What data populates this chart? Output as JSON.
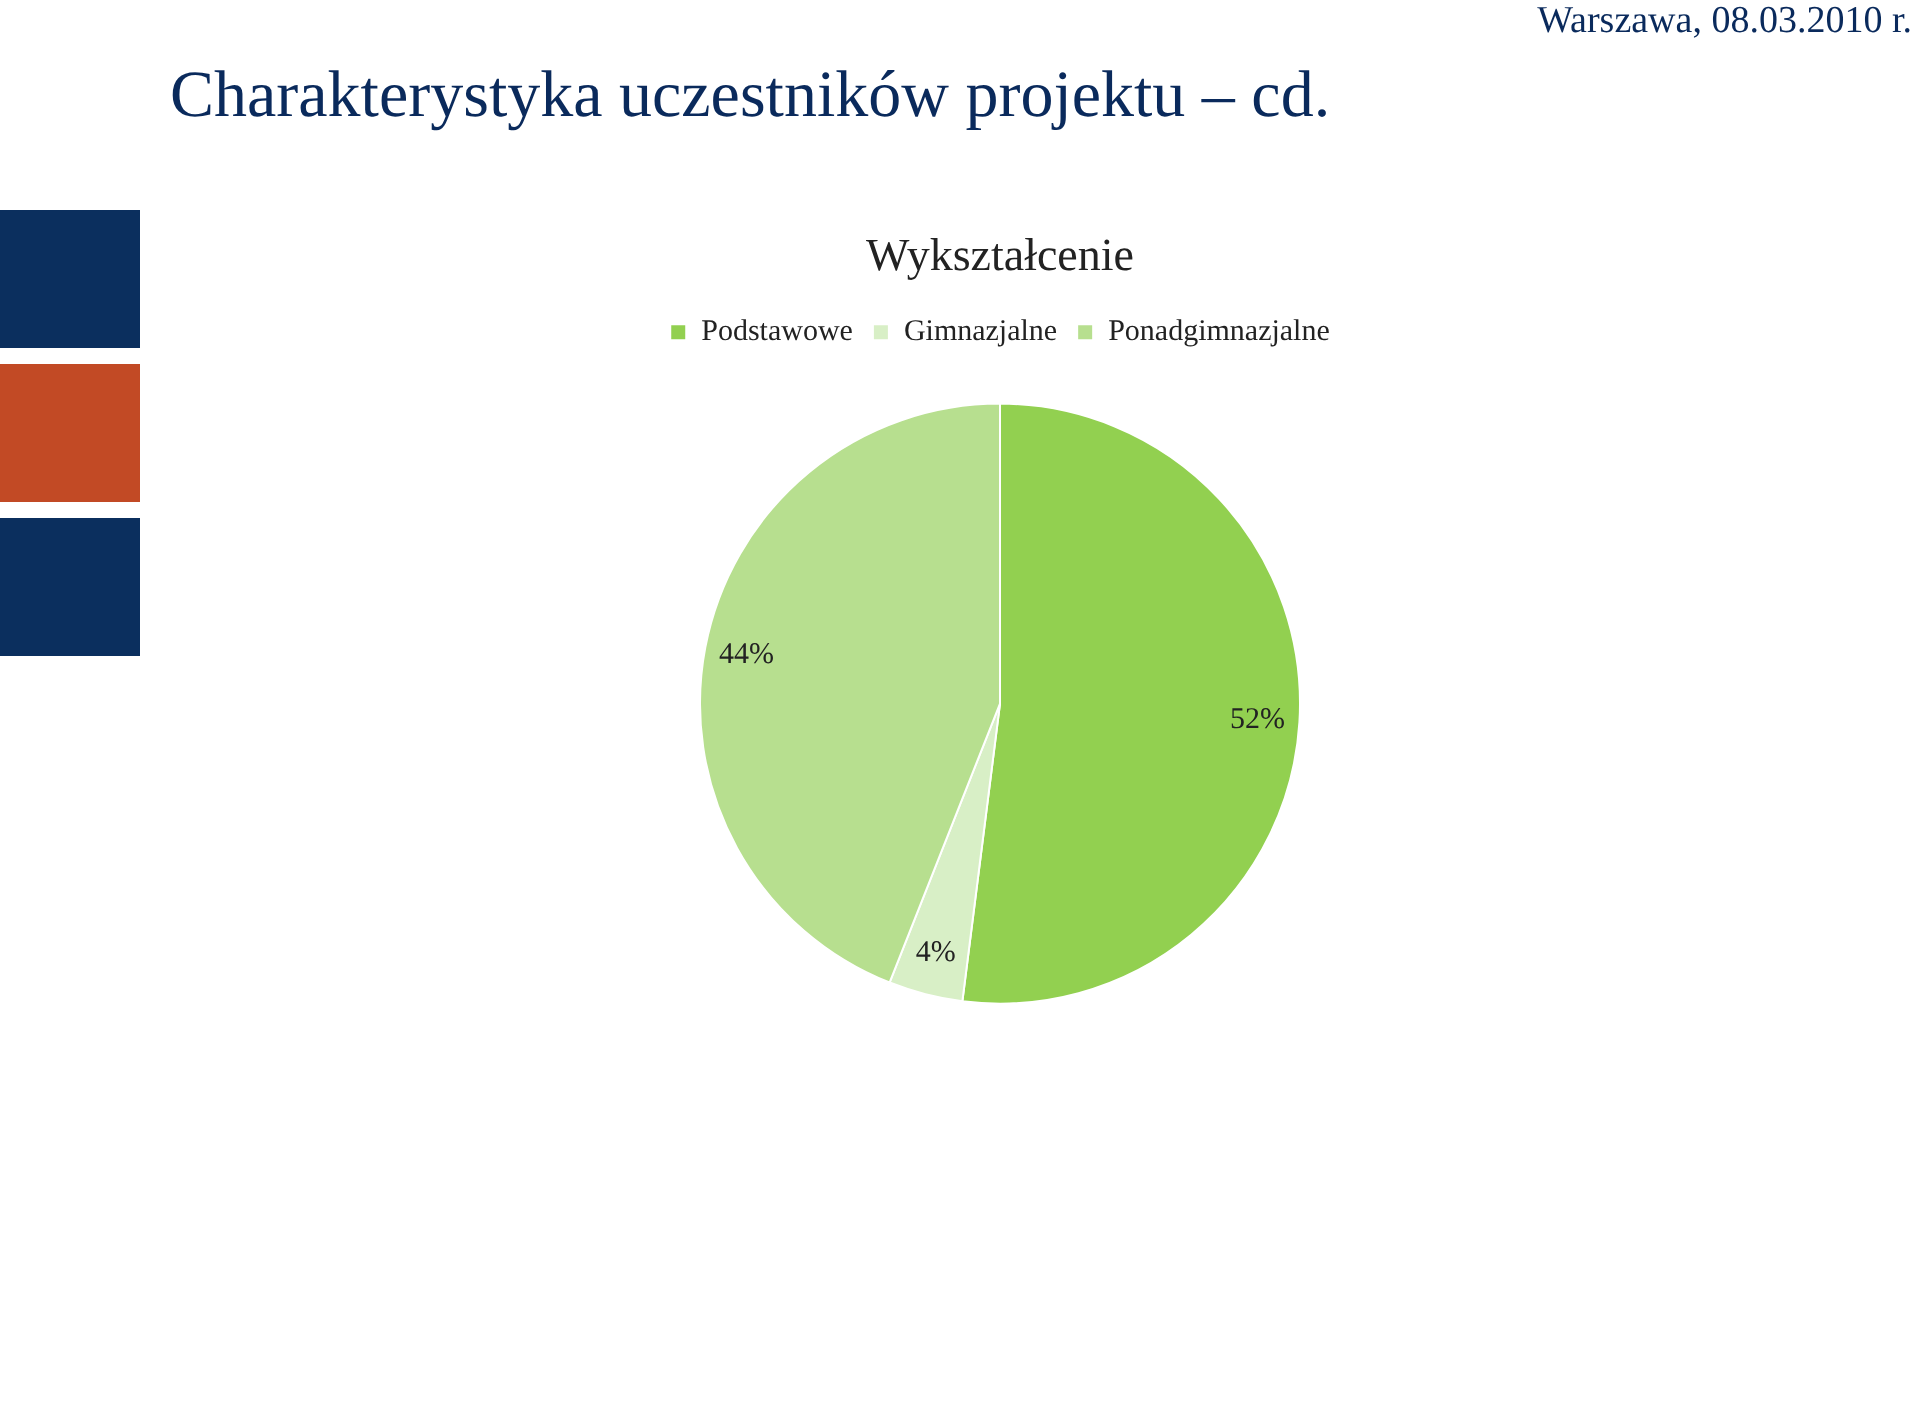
{
  "chart_data": {
    "type": "pie",
    "title": "Wykształcenie",
    "categories": [
      "Podstawowe",
      "Gimnazjalne",
      "Ponadgimnazjalne"
    ],
    "values": [
      52,
      4,
      44
    ],
    "colors": [
      "#92d050",
      "#d8efc6",
      "#b7df8f"
    ],
    "value_labels": [
      "52%",
      "4%",
      "44%"
    ],
    "legend": "top",
    "annotations": [
      "Charakterystyka uczestników projektu – cd.",
      "Warszawa, 08.03.2010 r."
    ]
  }
}
